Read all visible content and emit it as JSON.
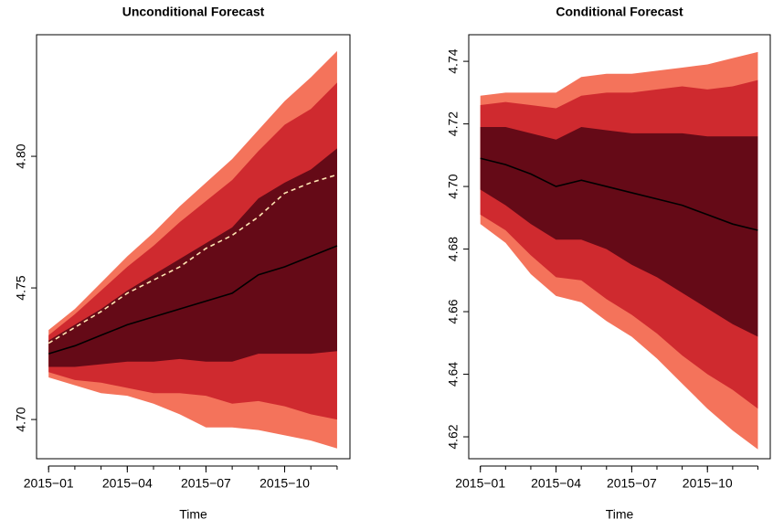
{
  "chart_data": [
    {
      "type": "fan",
      "title": "Unconditional Forecast",
      "xlabel": "Time",
      "x": [
        "2015-01",
        "2015-02",
        "2015-03",
        "2015-04",
        "2015-05",
        "2015-06",
        "2015-07",
        "2015-08",
        "2015-09",
        "2015-10",
        "2015-11",
        "2015-12"
      ],
      "xticks": [
        {
          "value": "2015-01",
          "label": "2015−01"
        },
        {
          "value": "2015-04",
          "label": "2015−04"
        },
        {
          "value": "2015-07",
          "label": "2015−07"
        },
        {
          "value": "2015-10",
          "label": "2015−10"
        }
      ],
      "ylim": [
        4.6851,
        4.8462
      ],
      "yticks": [
        {
          "value": 4.7,
          "label": "4.70"
        },
        4.75,
        {
          "value": 4.8,
          "label": "4.80"
        }
      ],
      "bands": [
        {
          "color": "#f4735b",
          "lower": [
            4.716,
            4.713,
            4.71,
            4.709,
            4.706,
            4.702,
            4.697,
            4.697,
            4.696,
            4.694,
            4.692,
            4.689
          ],
          "upper": [
            4.734,
            4.742,
            4.752,
            4.762,
            4.771,
            4.781,
            4.79,
            4.799,
            4.81,
            4.821,
            4.83,
            4.84
          ]
        },
        {
          "color": "#cf2a2f",
          "lower": [
            4.718,
            4.715,
            4.714,
            4.712,
            4.71,
            4.71,
            4.709,
            4.706,
            4.707,
            4.705,
            4.702,
            4.7
          ],
          "upper": [
            4.732,
            4.74,
            4.749,
            4.758,
            4.766,
            4.775,
            4.783,
            4.791,
            4.802,
            4.812,
            4.818,
            4.828
          ]
        },
        {
          "color": "#650a17",
          "lower": [
            4.72,
            4.72,
            4.721,
            4.722,
            4.722,
            4.723,
            4.722,
            4.722,
            4.725,
            4.725,
            4.725,
            4.726
          ],
          "upper": [
            4.73,
            4.736,
            4.742,
            4.749,
            4.755,
            4.761,
            4.767,
            4.773,
            4.784,
            4.79,
            4.795,
            4.803
          ]
        }
      ],
      "lines": [
        {
          "color": "#000000",
          "dashed": false,
          "values": [
            4.725,
            4.728,
            4.732,
            4.736,
            4.739,
            4.742,
            4.745,
            4.748,
            4.755,
            4.758,
            4.762,
            4.766
          ]
        },
        {
          "color": "#ffe6b3",
          "dashed": true,
          "values": [
            4.729,
            4.735,
            4.741,
            4.748,
            4.753,
            4.758,
            4.765,
            4.77,
            4.777,
            4.786,
            4.79,
            4.793
          ]
        }
      ]
    },
    {
      "type": "fan",
      "title": "Conditional Forecast",
      "xlabel": "Time",
      "x": [
        "2015-01",
        "2015-02",
        "2015-03",
        "2015-04",
        "2015-05",
        "2015-06",
        "2015-07",
        "2015-08",
        "2015-09",
        "2015-10",
        "2015-11",
        "2015-12"
      ],
      "xticks": [
        {
          "value": "2015-01",
          "label": "2015−01"
        },
        {
          "value": "2015-04",
          "label": "2015−04"
        },
        {
          "value": "2015-07",
          "label": "2015−07"
        },
        {
          "value": "2015-10",
          "label": "2015−10"
        }
      ],
      "ylim": [
        4.613,
        4.7485
      ],
      "yticks": [
        4.62,
        4.64,
        4.66,
        4.68,
        {
          "value": 4.7,
          "label": "4.70"
        },
        4.72,
        4.74
      ],
      "bands": [
        {
          "color": "#f4735b",
          "lower": [
            4.688,
            4.682,
            4.672,
            4.665,
            4.663,
            4.657,
            4.652,
            4.645,
            4.637,
            4.629,
            4.622,
            4.616
          ],
          "upper": [
            4.729,
            4.73,
            4.73,
            4.73,
            4.735,
            4.736,
            4.736,
            4.737,
            4.738,
            4.739,
            4.741,
            4.743
          ]
        },
        {
          "color": "#cf2a2f",
          "lower": [
            4.691,
            4.686,
            4.678,
            4.671,
            4.67,
            4.664,
            4.659,
            4.653,
            4.646,
            4.64,
            4.635,
            4.629
          ],
          "upper": [
            4.726,
            4.727,
            4.726,
            4.725,
            4.729,
            4.73,
            4.73,
            4.731,
            4.732,
            4.731,
            4.732,
            4.734
          ]
        },
        {
          "color": "#650a17",
          "lower": [
            4.699,
            4.694,
            4.688,
            4.683,
            4.683,
            4.68,
            4.675,
            4.671,
            4.666,
            4.661,
            4.656,
            4.652
          ],
          "upper": [
            4.719,
            4.719,
            4.717,
            4.715,
            4.719,
            4.718,
            4.717,
            4.717,
            4.717,
            4.716,
            4.716,
            4.716
          ]
        }
      ],
      "lines": [
        {
          "color": "#000000",
          "dashed": false,
          "values": [
            4.709,
            4.707,
            4.704,
            4.7,
            4.702,
            4.7,
            4.698,
            4.696,
            4.694,
            4.691,
            4.688,
            4.686
          ]
        }
      ]
    }
  ]
}
